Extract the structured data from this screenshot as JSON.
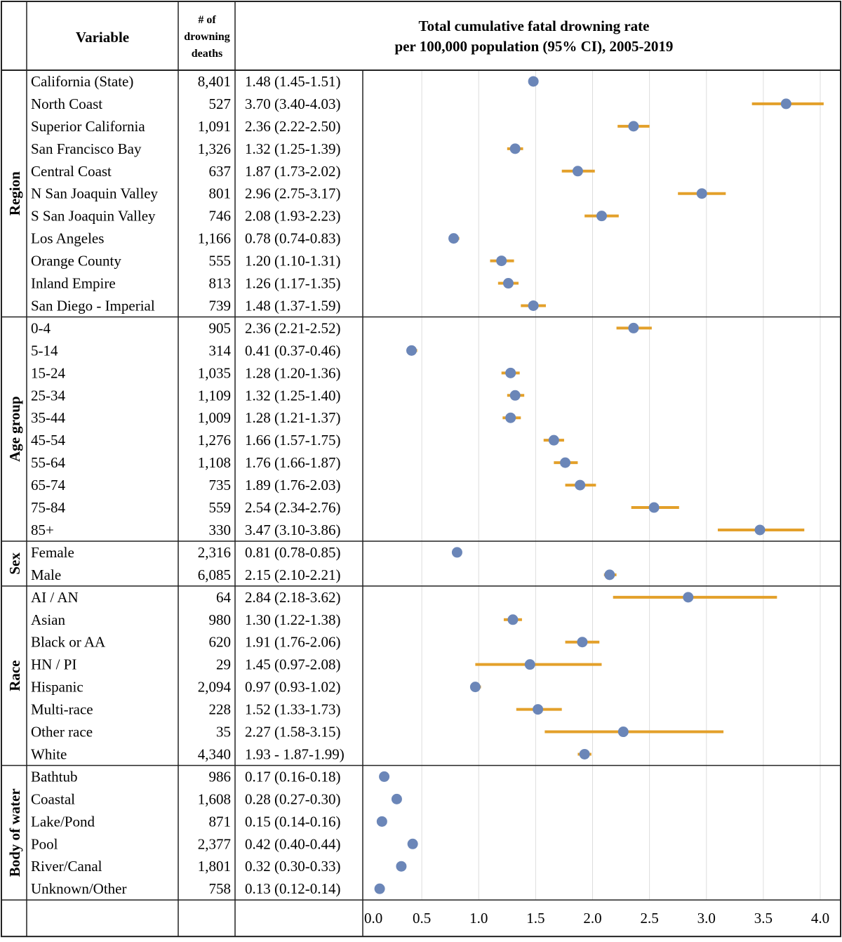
{
  "headers": {
    "variable": "Variable",
    "deaths_line1": "# of",
    "deaths_line2": "drowning",
    "deaths_line3": "deaths",
    "title_line1": "Total cumulative fatal drowning rate",
    "title_line2": "per 100,000 population (95% CI), 2005-2019"
  },
  "colors": {
    "point": "#6b86b8",
    "ci": "#e3a02a",
    "grid": "#dddddd",
    "line": "#222222"
  },
  "chart_data": {
    "type": "forest",
    "title": "Total cumulative fatal drowning rate per 100,000 population (95% CI), 2005-2019",
    "xlim": [
      0,
      4.0
    ],
    "ticks": [
      "0.0",
      "0.5",
      "1.0",
      "1.5",
      "2.0",
      "2.5",
      "3.0",
      "3.5",
      "4.0"
    ],
    "grid": "vertical",
    "groups": [
      {
        "name": "Region",
        "rows": [
          {
            "label": "California (State)",
            "n": "8,401",
            "text": "1.48 (1.45-1.51)",
            "est": 1.48,
            "lo": 1.45,
            "hi": 1.51
          },
          {
            "label": "North Coast",
            "n": "527",
            "text": "3.70 (3.40-4.03)",
            "est": 3.7,
            "lo": 3.4,
            "hi": 4.03
          },
          {
            "label": "Superior California",
            "n": "1,091",
            "text": "2.36 (2.22-2.50)",
            "est": 2.36,
            "lo": 2.22,
            "hi": 2.5
          },
          {
            "label": "San Francisco Bay",
            "n": "1,326",
            "text": "1.32 (1.25-1.39)",
            "est": 1.32,
            "lo": 1.25,
            "hi": 1.39
          },
          {
            "label": "Central Coast",
            "n": "637",
            "text": "1.87 (1.73-2.02)",
            "est": 1.87,
            "lo": 1.73,
            "hi": 2.02
          },
          {
            "label": "N San Joaquin Valley",
            "n": "801",
            "text": "2.96 (2.75-3.17)",
            "est": 2.96,
            "lo": 2.75,
            "hi": 3.17
          },
          {
            "label": "S San Joaquin Valley",
            "n": "746",
            "text": "2.08 (1.93-2.23)",
            "est": 2.08,
            "lo": 1.93,
            "hi": 2.23
          },
          {
            "label": "Los Angeles",
            "n": "1,166",
            "text": "0.78 (0.74-0.83)",
            "est": 0.78,
            "lo": 0.74,
            "hi": 0.83
          },
          {
            "label": "Orange County",
            "n": "555",
            "text": "1.20 (1.10-1.31)",
            "est": 1.2,
            "lo": 1.1,
            "hi": 1.31
          },
          {
            "label": "Inland Empire",
            "n": "813",
            "text": "1.26 (1.17-1.35)",
            "est": 1.26,
            "lo": 1.17,
            "hi": 1.35
          },
          {
            "label": "San Diego - Imperial",
            "n": "739",
            "text": "1.48 (1.37-1.59)",
            "est": 1.48,
            "lo": 1.37,
            "hi": 1.59
          }
        ]
      },
      {
        "name": "Age group",
        "rows": [
          {
            "label": "0-4",
            "n": "905",
            "text": "2.36 (2.21-2.52)",
            "est": 2.36,
            "lo": 2.21,
            "hi": 2.52
          },
          {
            "label": "5-14",
            "n": "314",
            "text": "0.41 (0.37-0.46)",
            "est": 0.41,
            "lo": 0.37,
            "hi": 0.46
          },
          {
            "label": "15-24",
            "n": "1,035",
            "text": "1.28 (1.20-1.36)",
            "est": 1.28,
            "lo": 1.2,
            "hi": 1.36
          },
          {
            "label": "25-34",
            "n": "1,109",
            "text": "1.32 (1.25-1.40)",
            "est": 1.32,
            "lo": 1.25,
            "hi": 1.4
          },
          {
            "label": "35-44",
            "n": "1,009",
            "text": "1.28 (1.21-1.37)",
            "est": 1.28,
            "lo": 1.21,
            "hi": 1.37
          },
          {
            "label": "45-54",
            "n": "1,276",
            "text": "1.66 (1.57-1.75)",
            "est": 1.66,
            "lo": 1.57,
            "hi": 1.75
          },
          {
            "label": "55-64",
            "n": "1,108",
            "text": "1.76 (1.66-1.87)",
            "est": 1.76,
            "lo": 1.66,
            "hi": 1.87
          },
          {
            "label": "65-74",
            "n": "735",
            "text": "1.89 (1.76-2.03)",
            "est": 1.89,
            "lo": 1.76,
            "hi": 2.03
          },
          {
            "label": "75-84",
            "n": "559",
            "text": "2.54 (2.34-2.76)",
            "est": 2.54,
            "lo": 2.34,
            "hi": 2.76
          },
          {
            "label": "85+",
            "n": "330",
            "text": "3.47 (3.10-3.86)",
            "est": 3.47,
            "lo": 3.1,
            "hi": 3.86
          }
        ]
      },
      {
        "name": "Sex",
        "rows": [
          {
            "label": "Female",
            "n": "2,316",
            "text": "0.81 (0.78-0.85)",
            "est": 0.81,
            "lo": 0.78,
            "hi": 0.85
          },
          {
            "label": "Male",
            "n": "6,085",
            "text": "2.15 (2.10-2.21)",
            "est": 2.15,
            "lo": 2.1,
            "hi": 2.21
          }
        ]
      },
      {
        "name": "Race",
        "rows": [
          {
            "label": "AI / AN",
            "n": "64",
            "text": "2.84 (2.18-3.62)",
            "est": 2.84,
            "lo": 2.18,
            "hi": 3.62
          },
          {
            "label": "Asian",
            "n": "980",
            "text": "1.30 (1.22-1.38)",
            "est": 1.3,
            "lo": 1.22,
            "hi": 1.38
          },
          {
            "label": "Black or AA",
            "n": "620",
            "text": "1.91 (1.76-2.06)",
            "est": 1.91,
            "lo": 1.76,
            "hi": 2.06
          },
          {
            "label": "HN / PI",
            "n": "29",
            "text": "1.45 (0.97-2.08)",
            "est": 1.45,
            "lo": 0.97,
            "hi": 2.08
          },
          {
            "label": "Hispanic",
            "n": "2,094",
            "text": "0.97 (0.93-1.02)",
            "est": 0.97,
            "lo": 0.93,
            "hi": 1.02
          },
          {
            "label": "Multi-race",
            "n": "228",
            "text": "1.52 (1.33-1.73)",
            "est": 1.52,
            "lo": 1.33,
            "hi": 1.73
          },
          {
            "label": "Other race",
            "n": "35",
            "text": "2.27 (1.58-3.15)",
            "est": 2.27,
            "lo": 1.58,
            "hi": 3.15
          },
          {
            "label": "White",
            "n": "4,340",
            "text": "1.93 - 1.87-1.99)",
            "est": 1.93,
            "lo": 1.87,
            "hi": 1.99
          }
        ]
      },
      {
        "name": "Body of water",
        "rows": [
          {
            "label": "Bathtub",
            "n": "986",
            "text": "0.17 (0.16-0.18)",
            "est": 0.17,
            "lo": 0.16,
            "hi": 0.18
          },
          {
            "label": "Coastal",
            "n": "1,608",
            "text": "0.28 (0.27-0.30)",
            "est": 0.28,
            "lo": 0.27,
            "hi": 0.3
          },
          {
            "label": "Lake/Pond",
            "n": "871",
            "text": "0.15 (0.14-0.16)",
            "est": 0.15,
            "lo": 0.14,
            "hi": 0.16
          },
          {
            "label": "Pool",
            "n": "2,377",
            "text": "0.42 (0.40-0.44)",
            "est": 0.42,
            "lo": 0.4,
            "hi": 0.44
          },
          {
            "label": "River/Canal",
            "n": "1,801",
            "text": "0.32 (0.30-0.33)",
            "est": 0.32,
            "lo": 0.3,
            "hi": 0.33
          },
          {
            "label": "Unknown/Other",
            "n": "758",
            "text": "0.13 (0.12-0.14)",
            "est": 0.13,
            "lo": 0.12,
            "hi": 0.14
          }
        ]
      }
    ]
  }
}
